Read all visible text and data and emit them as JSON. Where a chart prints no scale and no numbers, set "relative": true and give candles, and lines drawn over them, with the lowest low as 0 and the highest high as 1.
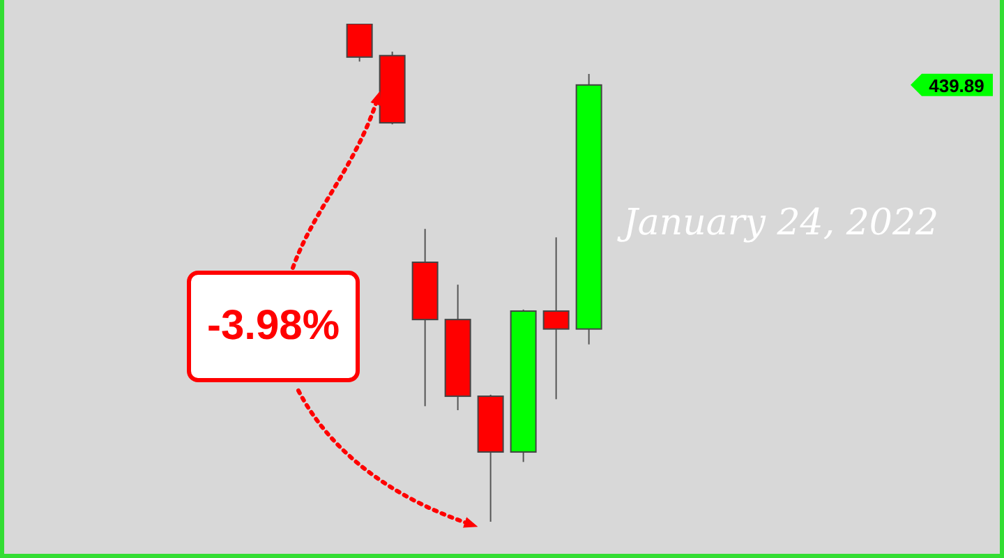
{
  "chart_data": {
    "type": "candlestick",
    "relative": true,
    "categories": [
      null,
      null,
      null,
      null,
      null,
      null,
      null,
      null
    ],
    "ohlc": [
      [
        1,
        1,
        0.924,
        0.933
      ],
      [
        0.936,
        0.944,
        0.798,
        0.801
      ],
      [
        0.521,
        0.588,
        0.232,
        0.406
      ],
      [
        0.406,
        0.476,
        0.224,
        0.252
      ],
      [
        0.252,
        0.255,
        0,
        0.14
      ],
      [
        0.14,
        0.426,
        0.12,
        0.423
      ],
      [
        0.423,
        0.571,
        0.246,
        0.387
      ],
      [
        0.387,
        0.899,
        0.356,
        0.877
      ]
    ],
    "colors": [
      "#ff0000",
      "#ff0000",
      "#ff0000",
      "#ff0000",
      "#ff0000",
      "#00ff00",
      "#ff0000",
      "#00ff00"
    ],
    "annotations": [
      "-3.98%",
      "January 24, 2022",
      "439.89"
    ]
  }
}
